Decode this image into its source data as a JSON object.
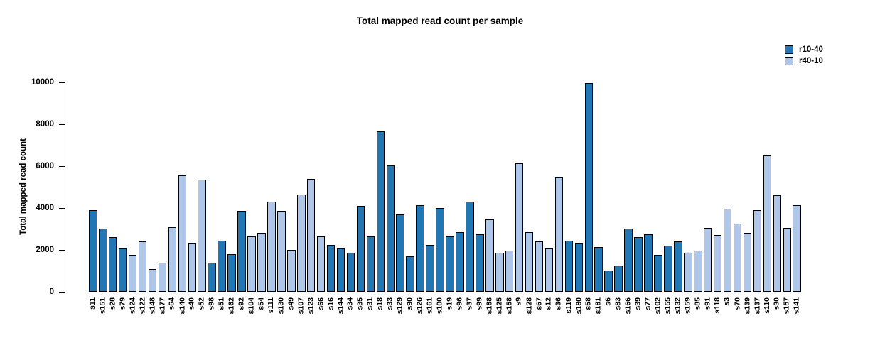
{
  "title": "Total mapped read count per sample",
  "legend": [
    {
      "label": "r10-40",
      "color": "#2077b4"
    },
    {
      "label": "r40-10",
      "color": "#aec7e8"
    }
  ],
  "chart_data": {
    "type": "bar",
    "title": "Total mapped read count per sample",
    "xlabel": "",
    "ylabel": "Total mapped read count",
    "ylim": [
      0,
      10000
    ],
    "yticks": [
      0,
      2000,
      4000,
      6000,
      8000,
      10000
    ],
    "grid": false,
    "legend_position": "top-right",
    "series_colors": {
      "r10-40": "#2077b4",
      "r40-10": "#aec7e8"
    },
    "samples": [
      {
        "label": "s11",
        "value": 3900,
        "series": "r10-40"
      },
      {
        "label": "s151",
        "value": 3000,
        "series": "r10-40"
      },
      {
        "label": "s28",
        "value": 2600,
        "series": "r10-40"
      },
      {
        "label": "s79",
        "value": 2100,
        "series": "r10-40"
      },
      {
        "label": "s124",
        "value": 1750,
        "series": "r40-10"
      },
      {
        "label": "s122",
        "value": 2400,
        "series": "r40-10"
      },
      {
        "label": "s148",
        "value": 1100,
        "series": "r40-10"
      },
      {
        "label": "s177",
        "value": 1400,
        "series": "r40-10"
      },
      {
        "label": "s64",
        "value": 3100,
        "series": "r40-10"
      },
      {
        "label": "s140",
        "value": 5550,
        "series": "r40-10"
      },
      {
        "label": "s40",
        "value": 2350,
        "series": "r40-10"
      },
      {
        "label": "s52",
        "value": 5350,
        "series": "r40-10"
      },
      {
        "label": "s98",
        "value": 1400,
        "series": "r10-40"
      },
      {
        "label": "s51",
        "value": 2450,
        "series": "r10-40"
      },
      {
        "label": "s162",
        "value": 1800,
        "series": "r10-40"
      },
      {
        "label": "s92",
        "value": 3850,
        "series": "r10-40"
      },
      {
        "label": "s104",
        "value": 2650,
        "series": "r40-10"
      },
      {
        "label": "s54",
        "value": 2800,
        "series": "r40-10"
      },
      {
        "label": "s111",
        "value": 4300,
        "series": "r40-10"
      },
      {
        "label": "s130",
        "value": 3850,
        "series": "r40-10"
      },
      {
        "label": "s49",
        "value": 2000,
        "series": "r40-10"
      },
      {
        "label": "s107",
        "value": 4650,
        "series": "r40-10"
      },
      {
        "label": "s123",
        "value": 5400,
        "series": "r40-10"
      },
      {
        "label": "s66",
        "value": 2650,
        "series": "r40-10"
      },
      {
        "label": "s16",
        "value": 2250,
        "series": "r10-40"
      },
      {
        "label": "s144",
        "value": 2100,
        "series": "r10-40"
      },
      {
        "label": "s34",
        "value": 1850,
        "series": "r10-40"
      },
      {
        "label": "s35",
        "value": 4100,
        "series": "r10-40"
      },
      {
        "label": "s31",
        "value": 2650,
        "series": "r10-40"
      },
      {
        "label": "s18",
        "value": 7650,
        "series": "r10-40"
      },
      {
        "label": "s33",
        "value": 6050,
        "series": "r10-40"
      },
      {
        "label": "s129",
        "value": 3700,
        "series": "r10-40"
      },
      {
        "label": "s90",
        "value": 1700,
        "series": "r10-40"
      },
      {
        "label": "s126",
        "value": 4150,
        "series": "r10-40"
      },
      {
        "label": "s161",
        "value": 2250,
        "series": "r10-40"
      },
      {
        "label": "s100",
        "value": 4000,
        "series": "r10-40"
      },
      {
        "label": "s19",
        "value": 2650,
        "series": "r10-40"
      },
      {
        "label": "s96",
        "value": 2850,
        "series": "r10-40"
      },
      {
        "label": "s37",
        "value": 4300,
        "series": "r10-40"
      },
      {
        "label": "s99",
        "value": 2750,
        "series": "r10-40"
      },
      {
        "label": "s188",
        "value": 3450,
        "series": "r40-10"
      },
      {
        "label": "s125",
        "value": 1850,
        "series": "r40-10"
      },
      {
        "label": "s158",
        "value": 1950,
        "series": "r40-10"
      },
      {
        "label": "s9",
        "value": 6150,
        "series": "r40-10"
      },
      {
        "label": "s128",
        "value": 2850,
        "series": "r40-10"
      },
      {
        "label": "s67",
        "value": 2400,
        "series": "r40-10"
      },
      {
        "label": "s12",
        "value": 2100,
        "series": "r40-10"
      },
      {
        "label": "s36",
        "value": 5500,
        "series": "r40-10"
      },
      {
        "label": "s119",
        "value": 2450,
        "series": "r10-40"
      },
      {
        "label": "s180",
        "value": 2350,
        "series": "r10-40"
      },
      {
        "label": "s58",
        "value": 9950,
        "series": "r10-40"
      },
      {
        "label": "s181",
        "value": 2150,
        "series": "r10-40"
      },
      {
        "label": "s6",
        "value": 1000,
        "series": "r10-40"
      },
      {
        "label": "s83",
        "value": 1250,
        "series": "r10-40"
      },
      {
        "label": "s166",
        "value": 3000,
        "series": "r10-40"
      },
      {
        "label": "s39",
        "value": 2600,
        "series": "r10-40"
      },
      {
        "label": "s77",
        "value": 2750,
        "series": "r10-40"
      },
      {
        "label": "s102",
        "value": 1750,
        "series": "r10-40"
      },
      {
        "label": "s155",
        "value": 2200,
        "series": "r10-40"
      },
      {
        "label": "s132",
        "value": 2400,
        "series": "r10-40"
      },
      {
        "label": "s159",
        "value": 1850,
        "series": "r40-10"
      },
      {
        "label": "s85",
        "value": 1950,
        "series": "r40-10"
      },
      {
        "label": "s91",
        "value": 3050,
        "series": "r40-10"
      },
      {
        "label": "s118",
        "value": 2700,
        "series": "r40-10"
      },
      {
        "label": "s3",
        "value": 3950,
        "series": "r40-10"
      },
      {
        "label": "s70",
        "value": 3250,
        "series": "r40-10"
      },
      {
        "label": "s139",
        "value": 2800,
        "series": "r40-10"
      },
      {
        "label": "s137",
        "value": 3900,
        "series": "r40-10"
      },
      {
        "label": "s110",
        "value": 6500,
        "series": "r40-10"
      },
      {
        "label": "s30",
        "value": 4600,
        "series": "r40-10"
      },
      {
        "label": "s157",
        "value": 3050,
        "series": "r40-10"
      },
      {
        "label": "s141",
        "value": 4150,
        "series": "r40-10"
      }
    ]
  }
}
